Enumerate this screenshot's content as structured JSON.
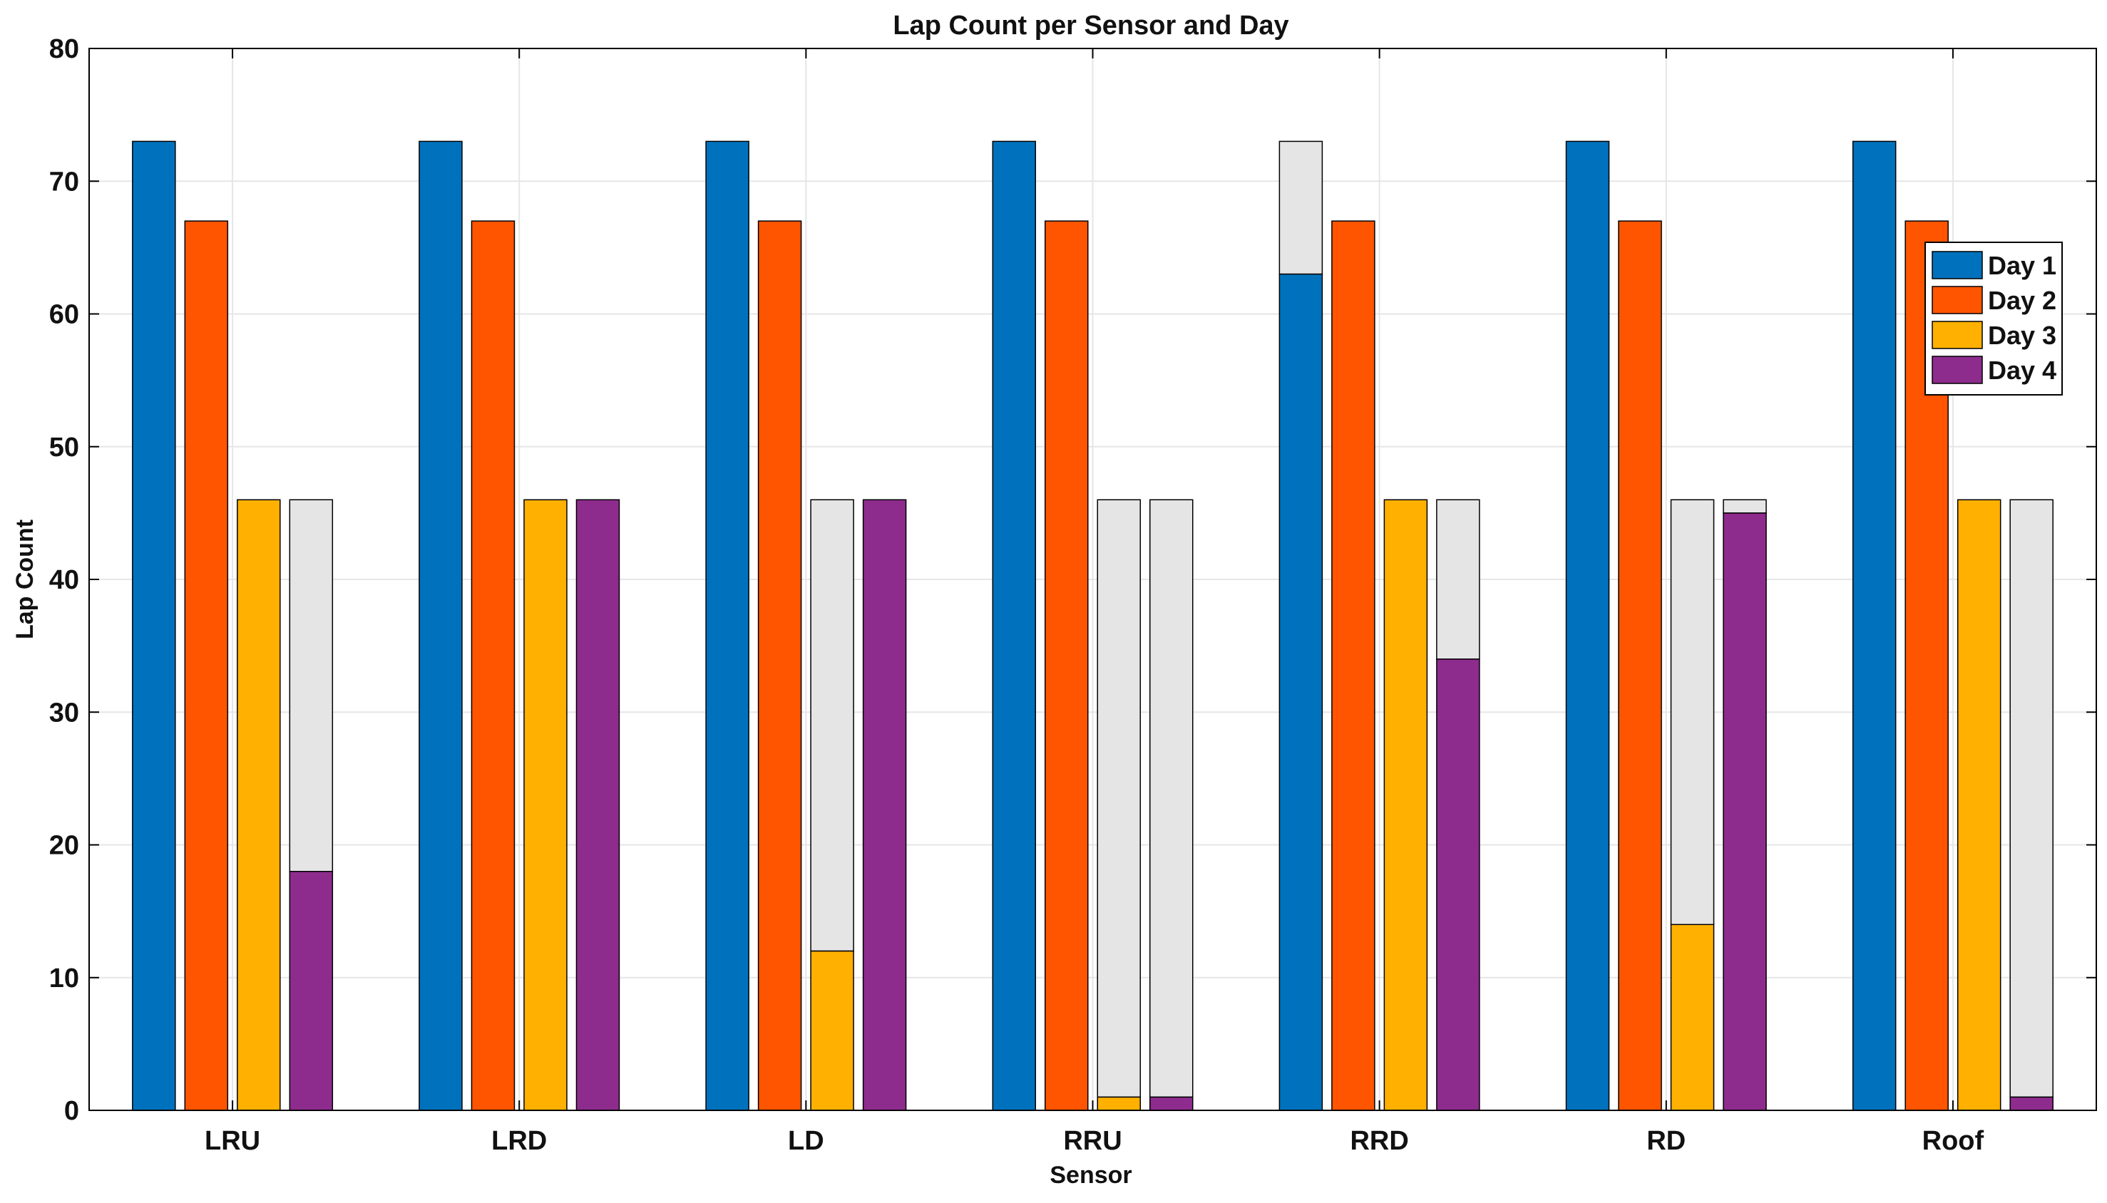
{
  "chart_data": {
    "type": "bar",
    "title": "Lap Count per Sensor and Day",
    "xlabel": "Sensor",
    "ylabel": "Lap Count",
    "ylim": [
      0,
      80
    ],
    "yticks": [
      0,
      10,
      20,
      30,
      40,
      50,
      60,
      70,
      80
    ],
    "grid": true,
    "legend_position": "top-right",
    "categories": [
      "LRU",
      "LRD",
      "LD",
      "RRU",
      "RRD",
      "RD",
      "Roof"
    ],
    "series": [
      {
        "name": "Day 1",
        "color": "#0072BD",
        "values": [
          73,
          73,
          73,
          73,
          63,
          73,
          73
        ],
        "expected": [
          73,
          73,
          73,
          73,
          73,
          73,
          73
        ]
      },
      {
        "name": "Day 2",
        "color": "#FF5500",
        "values": [
          67,
          67,
          67,
          67,
          67,
          67,
          67
        ],
        "expected": [
          67,
          67,
          67,
          67,
          67,
          67,
          67
        ]
      },
      {
        "name": "Day 3",
        "color": "#FFB000",
        "values": [
          46,
          46,
          12,
          1,
          46,
          14,
          46
        ],
        "expected": [
          46,
          46,
          46,
          46,
          46,
          46,
          46
        ]
      },
      {
        "name": "Day 4",
        "color": "#8E2C8E",
        "values": [
          18,
          46,
          46,
          1,
          34,
          45,
          1
        ],
        "expected": [
          46,
          46,
          46,
          46,
          46,
          46,
          46
        ]
      }
    ],
    "expected_color": "#E5E5E5"
  }
}
